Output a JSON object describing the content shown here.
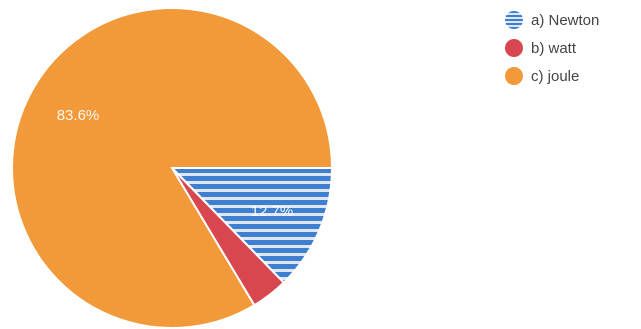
{
  "chart_data": {
    "type": "pie",
    "categories": [
      "a) Newton",
      "b) watt",
      "c) joule"
    ],
    "values": [
      12.7,
      3.7,
      83.6
    ],
    "data_labels": [
      "12.7%",
      "",
      "83.6%"
    ],
    "colors": [
      "#3f7fd0",
      "#d8474f",
      "#f2993a"
    ],
    "striped": [
      true,
      false,
      false
    ],
    "legend_position": "top-right",
    "start_angle_deg": 0,
    "direction": "clockwise"
  }
}
